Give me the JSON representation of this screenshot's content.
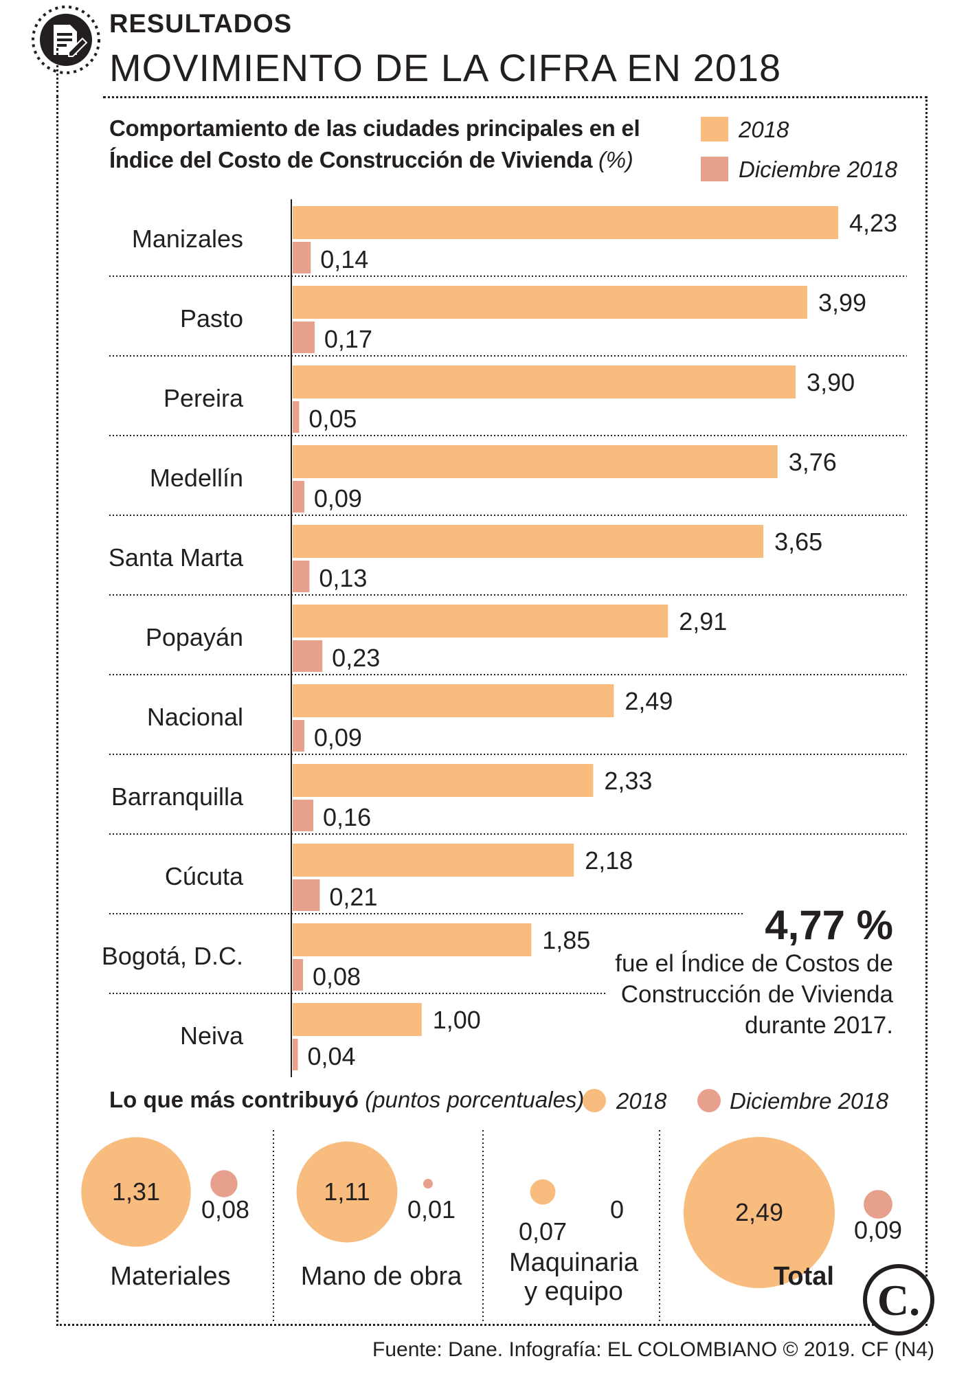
{
  "header": {
    "kicker": "RESULTADOS",
    "title": "MOVIMIENTO DE LA CIFRA EN 2018",
    "icon": "document-edit-icon"
  },
  "colors": {
    "series_2018": "#f8bd7e",
    "series_dic": "#e7a08c",
    "text": "#231f20"
  },
  "chart_data": {
    "type": "bar",
    "orientation": "horizontal",
    "title": "Comportamiento de las ciudades principales en el Índice del Costo de Construcción de Vivienda",
    "unit_label": "(%)",
    "categories": [
      "Manizales",
      "Pasto",
      "Pereira",
      "Medellín",
      "Santa Marta",
      "Popayán",
      "Nacional",
      "Barranquilla",
      "Cúcuta",
      "Bogotá, D.C.",
      "Neiva"
    ],
    "series": [
      {
        "name": "2018",
        "values": [
          4.23,
          3.99,
          3.9,
          3.76,
          3.65,
          2.91,
          2.49,
          2.33,
          2.18,
          1.85,
          1.0
        ],
        "labels": [
          "4,23",
          "3,99",
          "3,90",
          "3,76",
          "3,65",
          "2,91",
          "2,49",
          "2,33",
          "2,18",
          "1,85",
          "1,00"
        ]
      },
      {
        "name": "Diciembre 2018",
        "values": [
          0.14,
          0.17,
          0.05,
          0.09,
          0.13,
          0.23,
          0.09,
          0.16,
          0.21,
          0.08,
          0.04
        ],
        "labels": [
          "0,14",
          "0,17",
          "0,05",
          "0,09",
          "0,13",
          "0,23",
          "0,09",
          "0,16",
          "0,21",
          "0,08",
          "0,04"
        ]
      }
    ],
    "xlim": [
      0,
      4.23
    ],
    "legend": "top-right"
  },
  "callout": {
    "value": "4,77 %",
    "text_lines": [
      "fue el Índice de Costos de",
      "Construcción de Vivienda",
      "durante 2017."
    ]
  },
  "contributions": {
    "title": "Lo que más contribuyó",
    "unit_label": "(puntos porcentuales)",
    "legend": [
      "2018",
      "Diciembre 2018"
    ],
    "chart_data": {
      "type": "bubble",
      "categories": [
        "Materiales",
        "Mano de obra",
        "Maquinaria y equipo",
        "Total"
      ],
      "category_lines": [
        [
          "Materiales"
        ],
        [
          "Mano de obra"
        ],
        [
          "Maquinaria",
          "y equipo"
        ],
        [
          "Total"
        ]
      ],
      "series": [
        {
          "name": "2018",
          "values": [
            1.31,
            1.11,
            0.07,
            2.49
          ],
          "labels": [
            "1,31",
            "1,11",
            "0,07",
            "2,49"
          ]
        },
        {
          "name": "Diciembre 2018",
          "values": [
            0.08,
            0.01,
            0,
            0.09
          ],
          "labels": [
            "0,08",
            "0,01",
            "0",
            "0,09"
          ]
        }
      ]
    }
  },
  "source": "Fuente: Dane. Infografía: EL COLOMBIANO © 2019. CF (N4)",
  "logo": {
    "text": "C.",
    "icon": "el-colombiano-logo-icon"
  }
}
